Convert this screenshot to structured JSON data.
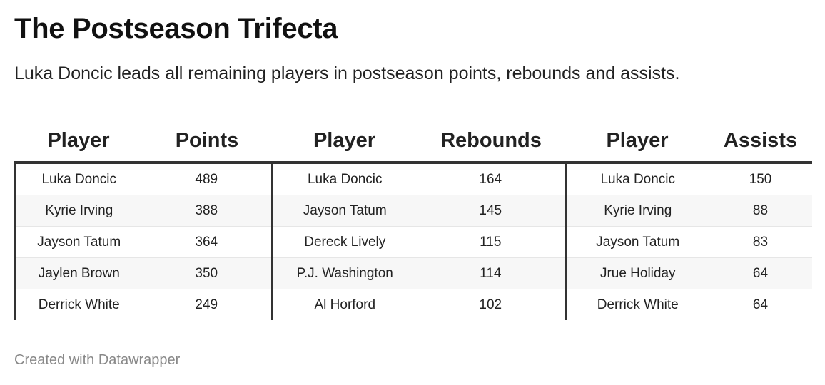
{
  "title": "The Postseason Trifecta",
  "subtitle": "Luka Doncic leads all remaining players in postseason points, rebounds and assists.",
  "footer": "Created with Datawrapper",
  "chart_data": {
    "type": "table",
    "columns": [
      "Player",
      "Points",
      "Player",
      "Rebounds",
      "Player",
      "Assists"
    ],
    "rows": [
      [
        "Luka Doncic",
        "489",
        "Luka Doncic",
        "164",
        "Luka Doncic",
        "150"
      ],
      [
        "Kyrie Irving",
        "388",
        "Jayson Tatum",
        "145",
        "Kyrie Irving",
        "88"
      ],
      [
        "Jayson Tatum",
        "364",
        "Dereck Lively",
        "115",
        "Jayson Tatum",
        "83"
      ],
      [
        "Jaylen Brown",
        "350",
        "P.J. Washington",
        "114",
        "Jrue Holiday",
        "64"
      ],
      [
        "Derrick White",
        "249",
        "Al Horford",
        "102",
        "Derrick White",
        "64"
      ]
    ]
  }
}
